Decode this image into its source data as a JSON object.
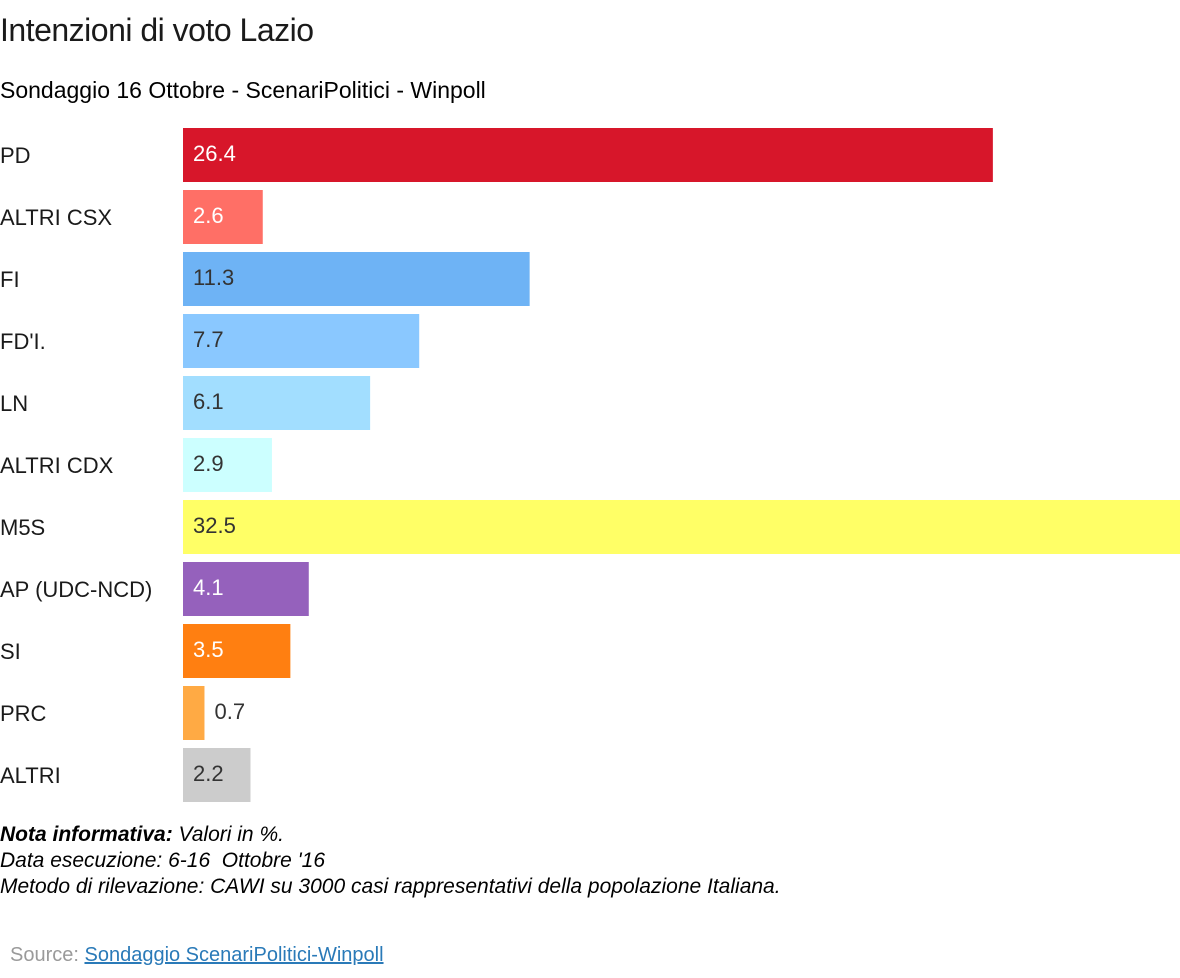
{
  "header": {
    "title": "Intenzioni di voto Lazio",
    "subtitle": "Sondaggio 16 Ottobre - ScenariPolitici - Winpoll"
  },
  "chart_data": {
    "type": "bar",
    "orientation": "horizontal",
    "categories": [
      "PD",
      "ALTRI CSX",
      "FI",
      "FD'I.",
      "LN",
      "ALTRI CDX",
      "M5S",
      "AP (UDC-NCD)",
      "SI",
      "PRC",
      "ALTRI"
    ],
    "values": [
      26.4,
      2.6,
      11.3,
      7.7,
      6.1,
      2.9,
      32.5,
      4.1,
      3.5,
      0.7,
      2.2
    ],
    "colors": [
      "#d7162a",
      "#ff6f66",
      "#6eb3f5",
      "#8ac8ff",
      "#a2deff",
      "#ccffff",
      "#ffff66",
      "#9561bc",
      "#ff7f11",
      "#ffaa44",
      "#cccccc"
    ],
    "label_colors": [
      "#ffffff",
      "#ffffff",
      "#333333",
      "#333333",
      "#333333",
      "#333333",
      "#333333",
      "#ffffff",
      "#ffffff",
      "#333333",
      "#333333"
    ],
    "xlim": [
      0,
      32.5
    ],
    "grid": false,
    "legend": "none"
  },
  "notes": {
    "label": "Nota informativa:",
    "line1_rest": " Valori in %.",
    "line2": "Data esecuzione: 6-16  Ottobre '16",
    "line3": "Metodo di rilevazione: CAWI su 3000 casi rappresentativi della popolazione Italiana."
  },
  "source": {
    "prefix": "Source: ",
    "link_text": "Sondaggio ScenariPolitici-Winpoll"
  }
}
